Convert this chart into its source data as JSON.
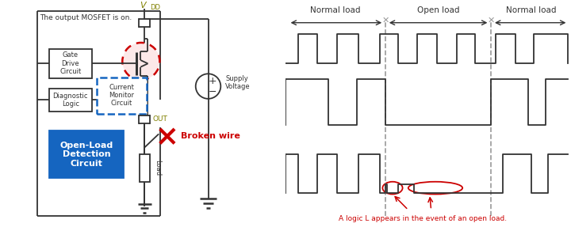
{
  "bg_color": "#ffffff",
  "left_note": "The output MOSFET is on.",
  "vdd_label": "V",
  "vdd_sub": "DD",
  "out_label": "OUT",
  "supply_label": "Supply\nVoltage",
  "broken_label": "Broken wire",
  "open_load_box_label": "Open-Load\nDetection\nCircuit",
  "gate_drive_label": "Gate\nDrive\nCircuit",
  "current_monitor_label": "Current\nMonitor\nCircuit",
  "diagnostic_label": "Diagnostic\nLogic",
  "load_label": "Load",
  "annotation_label": "A logic L appears in the event of an open load.",
  "normal_load_label": "Normal load",
  "open_load_label": "Open load",
  "line_color": "#333333",
  "blue_box_color": "#1565C0",
  "blue_dashed_color": "#1565C0",
  "red_color": "#cc0000",
  "gray_dashed_color": "#999999",
  "signal_color": "#333333",
  "olive_color": "#808000"
}
